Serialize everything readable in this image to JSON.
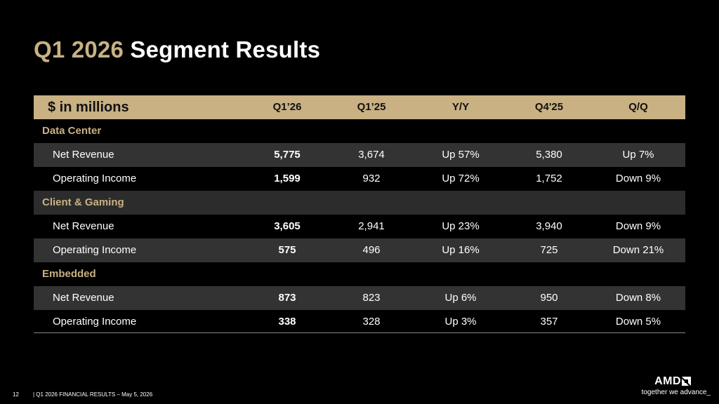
{
  "title": {
    "accent": "Q1 2026",
    "rest": "Segment Results"
  },
  "table": {
    "header": {
      "label": "$ in millions",
      "cols": [
        "Q1’26",
        "Q1’25",
        "Y/Y",
        "Q4'25",
        "Q/Q"
      ]
    },
    "sections": [
      {
        "name": "Data Center",
        "rows": [
          {
            "label": "Net Revenue",
            "values": [
              "5,775",
              "3,674",
              "Up 57%",
              "5,380",
              "Up 7%"
            ]
          },
          {
            "label": "Operating Income",
            "values": [
              "1,599",
              "932",
              "Up 72%",
              "1,752",
              "Down 9%"
            ]
          }
        ]
      },
      {
        "name": "Client & Gaming",
        "rows": [
          {
            "label": "Net Revenue",
            "values": [
              "3,605",
              "2,941",
              "Up 23%",
              "3,940",
              "Down 9%"
            ]
          },
          {
            "label": "Operating Income",
            "values": [
              "575",
              "496",
              "Up 16%",
              "725",
              "Down 21%"
            ]
          }
        ]
      },
      {
        "name": "Embedded",
        "rows": [
          {
            "label": "Net Revenue",
            "values": [
              "873",
              "823",
              "Up 6%",
              "950",
              "Down 8%"
            ]
          },
          {
            "label": "Operating Income",
            "values": [
              "338",
              "328",
              "Up 3%",
              "357",
              "Down 5%"
            ]
          }
        ]
      }
    ]
  },
  "footer": {
    "page": "12",
    "text": "|   Q1 2026 FINANCIAL RESULTS – May 5, 2026"
  },
  "logo": {
    "brand": "AMD",
    "tagline": "together we advance_"
  },
  "colors": {
    "accent": "#c9b183",
    "highlight_column": "#6e6e6e",
    "row_dark": "#333333",
    "background": "#000000"
  }
}
